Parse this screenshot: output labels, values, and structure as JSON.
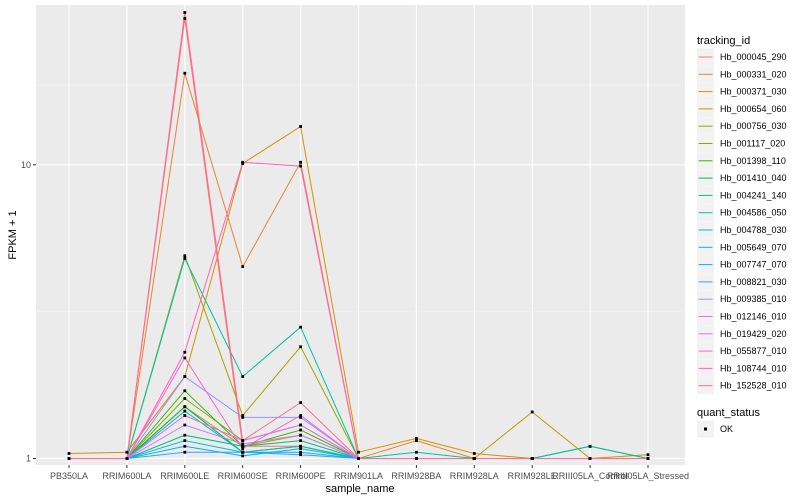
{
  "chart_data": {
    "type": "line",
    "xlabel": "sample_name",
    "ylabel": "FPKM + 1",
    "y_scale": "log10",
    "y_ticks": [
      1,
      10
    ],
    "y_tick_labels": [
      "1",
      "10"
    ],
    "ylim": [
      0.95,
      35
    ],
    "grid": true,
    "panel_background": "#ebebeb",
    "legend_position": "right",
    "categories": [
      "PB350LA",
      "RRIM600LA",
      "RRIM600LE",
      "RRIM600SE",
      "RRIM600PE",
      "RRIM901LA",
      "RRIM928BA",
      "RRIM928LA",
      "RRIM928LE",
      "RRIII05LA_Control",
      "RRIII05LA_Stressed"
    ],
    "color_legend_title": "tracking_id",
    "shape_legend_title": "quant_status",
    "shape_legend_items": [
      {
        "label": "OK",
        "shape": "square"
      }
    ],
    "series": [
      {
        "name": "Hb_000045_290",
        "color": "#F8766D",
        "values": [
          1,
          1,
          31.5,
          1.1,
          1.1,
          1,
          1,
          1,
          1,
          1,
          1
        ]
      },
      {
        "name": "Hb_000331_020",
        "color": "#EA8331",
        "values": [
          1,
          1,
          20.5,
          4.5,
          10.2,
          1,
          1.15,
          1,
          1,
          1,
          1
        ]
      },
      {
        "name": "Hb_000371_030",
        "color": "#D89000",
        "values": [
          1.04,
          1.05,
          1.9,
          10.1,
          13.5,
          1.05,
          1.17,
          1.04,
          1,
          1,
          1.03
        ]
      },
      {
        "name": "Hb_000654_060",
        "color": "#C09B00",
        "values": [
          1,
          1,
          1.5,
          1.1,
          1.2,
          1,
          1,
          1,
          1.44,
          1,
          1
        ]
      },
      {
        "name": "Hb_000756_030",
        "color": "#A3A500",
        "values": [
          1,
          1,
          4.9,
          1.4,
          2.4,
          1,
          1,
          1,
          1,
          1,
          1
        ]
      },
      {
        "name": "Hb_001117_020",
        "color": "#7CAE00",
        "values": [
          1,
          1,
          1.6,
          1.15,
          1.3,
          1,
          1,
          1,
          1,
          1,
          1
        ]
      },
      {
        "name": "Hb_001398_110",
        "color": "#39B600",
        "values": [
          1,
          1,
          1.7,
          1.1,
          1.25,
          1,
          1,
          1,
          1,
          1,
          1
        ]
      },
      {
        "name": "Hb_001410_040",
        "color": "#00BB4E",
        "values": [
          1,
          1,
          1.5,
          1.05,
          1.1,
          1,
          1,
          1,
          1,
          1.1,
          1
        ]
      },
      {
        "name": "Hb_004241_140",
        "color": "#00BF7D",
        "values": [
          1,
          1,
          1.2,
          1.1,
          1.15,
          1,
          1,
          1,
          1,
          1,
          1
        ]
      },
      {
        "name": "Hb_004586_050",
        "color": "#00C1A3",
        "values": [
          1,
          1,
          4.8,
          1.9,
          2.8,
          1,
          1.05,
          1,
          1,
          1.1,
          1
        ]
      },
      {
        "name": "Hb_004788_030",
        "color": "#00BFC4",
        "values": [
          1,
          1,
          1.45,
          1.05,
          1.1,
          1,
          1,
          1,
          1,
          1,
          1
        ]
      },
      {
        "name": "Hb_005649_070",
        "color": "#00BAE0",
        "values": [
          1,
          1,
          1.15,
          1.05,
          1.05,
          1,
          1,
          1,
          1,
          1,
          1
        ]
      },
      {
        "name": "Hb_007747_070",
        "color": "#00B0F6",
        "values": [
          1,
          1,
          1.1,
          1.02,
          1.08,
          1,
          1,
          1,
          1,
          1,
          1
        ]
      },
      {
        "name": "Hb_008821_030",
        "color": "#35A2FF",
        "values": [
          1,
          1,
          1.05,
          1.05,
          1.03,
          1,
          1,
          1,
          1,
          1,
          1
        ]
      },
      {
        "name": "Hb_009385_010",
        "color": "#9590FF",
        "values": [
          1,
          1,
          1.9,
          1.38,
          1.38,
          1,
          1,
          1,
          1,
          1,
          1
        ]
      },
      {
        "name": "Hb_012146_010",
        "color": "#C77CFF",
        "values": [
          1,
          1,
          1.3,
          1.12,
          1.2,
          1,
          1,
          1,
          1,
          1,
          1
        ]
      },
      {
        "name": "Hb_019429_020",
        "color": "#E76BF3",
        "values": [
          1,
          1,
          1.4,
          1.15,
          1.3,
          1,
          1,
          1,
          1,
          1,
          1
        ]
      },
      {
        "name": "Hb_055877_010",
        "color": "#FA62DB",
        "values": [
          1,
          1,
          2.2,
          1.08,
          1.4,
          1,
          1,
          1,
          1,
          1,
          1
        ]
      },
      {
        "name": "Hb_108744_010",
        "color": "#FF62BC",
        "values": [
          1,
          1,
          2.3,
          10.2,
          9.9,
          1,
          1,
          1,
          1,
          1,
          1
        ]
      },
      {
        "name": "Hb_152528_010",
        "color": "#FF6C91",
        "values": [
          1,
          1,
          33,
          1.15,
          1.55,
          1,
          1,
          1,
          1,
          1,
          1
        ]
      }
    ]
  }
}
